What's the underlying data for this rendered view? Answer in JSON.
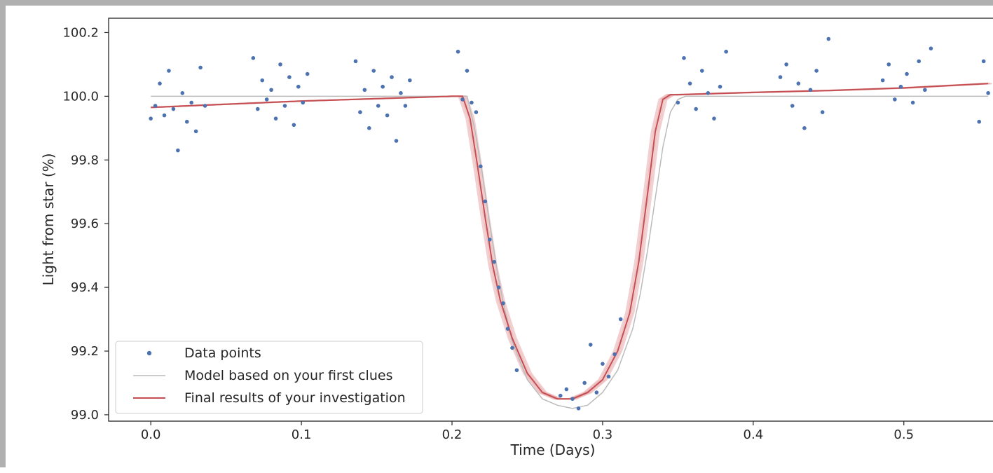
{
  "chart_data": {
    "type": "scatter",
    "title": "",
    "xlabel": "Time (Days)",
    "ylabel": "Light from star (%)",
    "xlim": [
      -0.028,
      0.562
    ],
    "ylim": [
      98.98,
      100.245
    ],
    "x_ticks": [
      0.0,
      0.1,
      0.2,
      0.3,
      0.4,
      0.5
    ],
    "x_tick_labels": [
      "0.0",
      "0.1",
      "0.2",
      "0.3",
      "0.4",
      "0.5"
    ],
    "y_ticks": [
      99.0,
      99.2,
      99.4,
      99.6,
      99.8,
      100.0,
      100.2
    ],
    "y_tick_labels": [
      "99.0",
      "99.2",
      "99.4",
      "99.6",
      "99.8",
      "100.0",
      "100.2"
    ],
    "grid": false,
    "legend_position": "bottom-left",
    "colors": {
      "data_points": "#4c72b0",
      "first_model": "#bbbbbb",
      "final_results": "#c44e52",
      "samples": "#e8a9ab"
    },
    "series": [
      {
        "name": "Data points",
        "kind": "scatter",
        "x": [
          0.0,
          0.003,
          0.006,
          0.009,
          0.012,
          0.015,
          0.018,
          0.021,
          0.024,
          0.027,
          0.03,
          0.033,
          0.036,
          0.068,
          0.071,
          0.074,
          0.077,
          0.08,
          0.083,
          0.086,
          0.089,
          0.092,
          0.095,
          0.098,
          0.101,
          0.104,
          0.136,
          0.139,
          0.142,
          0.145,
          0.148,
          0.151,
          0.154,
          0.157,
          0.16,
          0.163,
          0.166,
          0.169,
          0.172,
          0.204,
          0.207,
          0.21,
          0.213,
          0.216,
          0.219,
          0.222,
          0.225,
          0.228,
          0.231,
          0.234,
          0.237,
          0.24,
          0.243,
          0.272,
          0.276,
          0.28,
          0.284,
          0.288,
          0.292,
          0.296,
          0.3,
          0.304,
          0.308,
          0.312,
          0.35,
          0.354,
          0.358,
          0.362,
          0.366,
          0.37,
          0.374,
          0.378,
          0.382,
          0.418,
          0.422,
          0.426,
          0.43,
          0.434,
          0.438,
          0.442,
          0.446,
          0.45,
          0.486,
          0.49,
          0.494,
          0.498,
          0.502,
          0.506,
          0.51,
          0.514,
          0.518,
          0.55,
          0.553,
          0.556
        ],
        "y": [
          99.93,
          99.97,
          100.04,
          99.94,
          100.08,
          99.96,
          99.83,
          100.01,
          99.92,
          99.98,
          99.89,
          100.09,
          99.97,
          100.12,
          99.96,
          100.05,
          99.99,
          100.02,
          99.93,
          100.1,
          99.97,
          100.06,
          99.91,
          100.03,
          99.98,
          100.07,
          100.11,
          99.95,
          100.02,
          99.9,
          100.08,
          99.97,
          100.03,
          99.94,
          100.06,
          99.86,
          100.01,
          99.97,
          100.05,
          100.14,
          99.99,
          100.08,
          99.98,
          99.95,
          99.78,
          99.67,
          99.55,
          99.48,
          99.4,
          99.35,
          99.27,
          99.21,
          99.14,
          99.06,
          99.08,
          99.05,
          99.02,
          99.1,
          99.22,
          99.07,
          99.16,
          99.12,
          99.19,
          99.3,
          99.98,
          100.12,
          100.04,
          99.96,
          100.08,
          100.01,
          99.93,
          100.03,
          100.14,
          100.06,
          100.1,
          99.97,
          100.04,
          99.9,
          100.02,
          100.08,
          99.95,
          100.18,
          100.05,
          100.1,
          99.99,
          100.03,
          100.07,
          99.98,
          100.11,
          100.02,
          100.15,
          99.92,
          100.11,
          100.01
        ]
      },
      {
        "name": "Model based on your first clues",
        "kind": "line",
        "x": [
          0.0,
          0.21,
          0.215,
          0.22,
          0.225,
          0.23,
          0.235,
          0.24,
          0.25,
          0.26,
          0.27,
          0.28,
          0.29,
          0.3,
          0.31,
          0.32,
          0.325,
          0.33,
          0.335,
          0.34,
          0.345,
          0.35,
          0.355,
          0.36,
          0.556
        ],
        "y": [
          100.0,
          100.0,
          99.9,
          99.76,
          99.6,
          99.45,
          99.33,
          99.23,
          99.11,
          99.05,
          99.03,
          99.02,
          99.03,
          99.07,
          99.14,
          99.27,
          99.38,
          99.52,
          99.68,
          99.84,
          99.95,
          99.99,
          100.0,
          100.0,
          100.0
        ]
      },
      {
        "name": "Final results of your investigation",
        "kind": "line",
        "x": [
          0.0,
          0.1,
          0.2,
          0.207,
          0.212,
          0.217,
          0.222,
          0.227,
          0.232,
          0.24,
          0.25,
          0.26,
          0.27,
          0.28,
          0.29,
          0.3,
          0.31,
          0.318,
          0.324,
          0.33,
          0.335,
          0.34,
          0.345,
          0.35,
          0.4,
          0.45,
          0.5,
          0.556
        ],
        "y": [
          99.965,
          99.985,
          100.0,
          100.0,
          99.93,
          99.78,
          99.62,
          99.47,
          99.36,
          99.24,
          99.13,
          99.07,
          99.05,
          99.05,
          99.07,
          99.11,
          99.2,
          99.32,
          99.48,
          99.7,
          99.89,
          99.99,
          100.005,
          100.005,
          100.012,
          100.018,
          100.026,
          100.04
        ]
      }
    ]
  }
}
